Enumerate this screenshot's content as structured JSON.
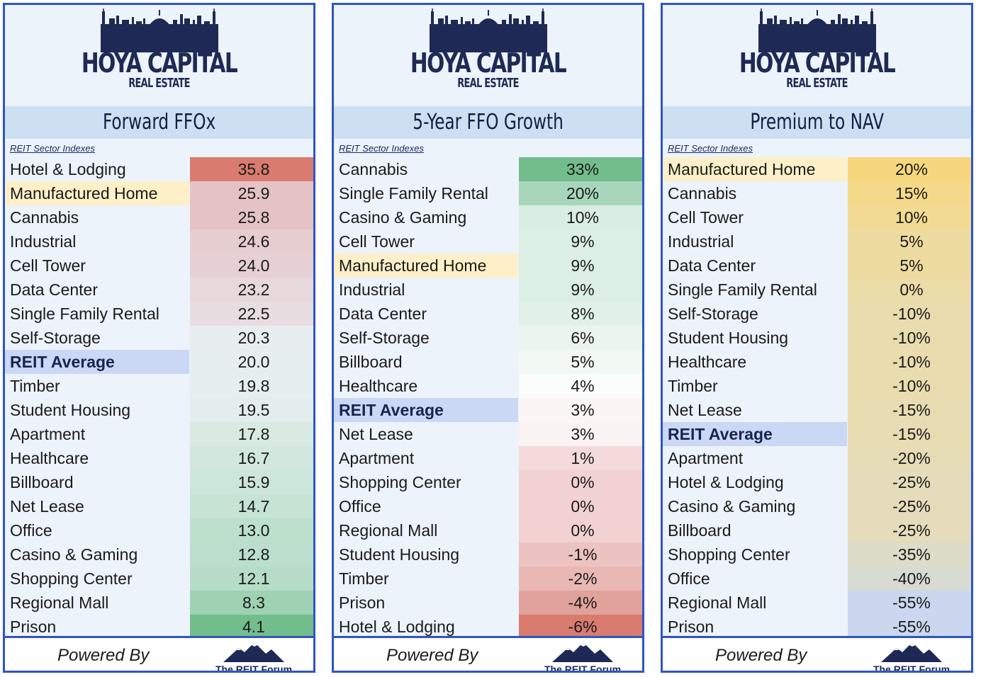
{
  "brand": {
    "name": "HOYA CAPITAL",
    "sub": "REAL ESTATE"
  },
  "footer": {
    "powered_by": "Powered By",
    "forum_name": "The REIT Forum"
  },
  "index_label": "REIT Sector Indexes",
  "colors": {
    "border": "#2f55c4",
    "highlight_row": "#fdf0c8",
    "average_row": "#cad8f5",
    "title_bar": "#cde0f1"
  },
  "panels": [
    {
      "title": "Forward FFOx",
      "rows": [
        {
          "name": "Hotel & Lodging",
          "value": "35.8",
          "color": "#d97b6f"
        },
        {
          "name": "Manufactured Home",
          "value": "25.9",
          "color": "#e5c3c5",
          "highlight": true
        },
        {
          "name": "Cannabis",
          "value": "25.8",
          "color": "#e5c3c5"
        },
        {
          "name": "Industrial",
          "value": "24.6",
          "color": "#e6cdd0"
        },
        {
          "name": "Cell Tower",
          "value": "24.0",
          "color": "#e6d0d3"
        },
        {
          "name": "Data Center",
          "value": "23.2",
          "color": "#e7d8db"
        },
        {
          "name": "Single Family Rental",
          "value": "22.5",
          "color": "#e8dde1"
        },
        {
          "name": "Self-Storage",
          "value": "20.3",
          "color": "#e8edf0"
        },
        {
          "name": "REIT Average",
          "value": "20.0",
          "color": "#e6eef0",
          "average": true
        },
        {
          "name": "Timber",
          "value": "19.8",
          "color": "#e5eef0"
        },
        {
          "name": "Student Housing",
          "value": "19.5",
          "color": "#e3eeec"
        },
        {
          "name": "Apartment",
          "value": "17.8",
          "color": "#d8eae2"
        },
        {
          "name": "Healthcare",
          "value": "16.7",
          "color": "#d2e8de"
        },
        {
          "name": "Billboard",
          "value": "15.9",
          "color": "#cde6da"
        },
        {
          "name": "Net Lease",
          "value": "14.7",
          "color": "#c6e3d4"
        },
        {
          "name": "Office",
          "value": "13.0",
          "color": "#bde0cd"
        },
        {
          "name": "Casino & Gaming",
          "value": "12.8",
          "color": "#bbdfcc"
        },
        {
          "name": "Shopping Center",
          "value": "12.1",
          "color": "#b6ddc8"
        },
        {
          "name": "Regional Mall",
          "value": "8.3",
          "color": "#9ed2b2"
        },
        {
          "name": "Prison",
          "value": "4.1",
          "color": "#72bd8c"
        }
      ]
    },
    {
      "title": "5-Year FFO Growth",
      "rows": [
        {
          "name": "Cannabis",
          "value": "33%",
          "color": "#73bd8d"
        },
        {
          "name": "Single Family Rental",
          "value": "20%",
          "color": "#a8d6bb"
        },
        {
          "name": "Casino & Gaming",
          "value": "10%",
          "color": "#d9ede2"
        },
        {
          "name": "Cell Tower",
          "value": "9%",
          "color": "#dcefe5"
        },
        {
          "name": "Manufactured Home",
          "value": "9%",
          "color": "#dcefe5",
          "highlight": true
        },
        {
          "name": "Industrial",
          "value": "9%",
          "color": "#dcefe5"
        },
        {
          "name": "Data Center",
          "value": "8%",
          "color": "#e1f1e8"
        },
        {
          "name": "Self-Storage",
          "value": "6%",
          "color": "#ebf5ef"
        },
        {
          "name": "Billboard",
          "value": "5%",
          "color": "#f2f8f4"
        },
        {
          "name": "Healthcare",
          "value": "4%",
          "color": "#fbfdfc"
        },
        {
          "name": "REIT Average",
          "value": "3%",
          "color": "#fbf5f5",
          "average": true
        },
        {
          "name": "Net Lease",
          "value": "3%",
          "color": "#fbf3f3"
        },
        {
          "name": "Apartment",
          "value": "1%",
          "color": "#f4dada"
        },
        {
          "name": "Shopping Center",
          "value": "0%",
          "color": "#f1d1d1"
        },
        {
          "name": "Office",
          "value": "0%",
          "color": "#f1d1d1"
        },
        {
          "name": "Regional Mall",
          "value": "0%",
          "color": "#f1d1d1"
        },
        {
          "name": "Student Housing",
          "value": "-1%",
          "color": "#ecc3c1"
        },
        {
          "name": "Timber",
          "value": "-2%",
          "color": "#e9b8b5"
        },
        {
          "name": "Prison",
          "value": "-4%",
          "color": "#e1a29b"
        },
        {
          "name": "Hotel & Lodging",
          "value": "-6%",
          "color": "#d97b6f"
        }
      ]
    },
    {
      "title": "Premium to NAV",
      "rows": [
        {
          "name": "Manufactured Home",
          "value": "20%",
          "color": "#f7d77d",
          "highlight": true
        },
        {
          "name": "Cannabis",
          "value": "15%",
          "color": "#f5d98a"
        },
        {
          "name": "Cell Tower",
          "value": "10%",
          "color": "#f2da94"
        },
        {
          "name": "Industrial",
          "value": "5%",
          "color": "#eedb9f"
        },
        {
          "name": "Data Center",
          "value": "5%",
          "color": "#eedb9f"
        },
        {
          "name": "Single Family Rental",
          "value": "0%",
          "color": "#ebdca8"
        },
        {
          "name": "Self-Storage",
          "value": "-10%",
          "color": "#e9dcae"
        },
        {
          "name": "Student Housing",
          "value": "-10%",
          "color": "#e9dcae"
        },
        {
          "name": "Healthcare",
          "value": "-10%",
          "color": "#e9dcae"
        },
        {
          "name": "Timber",
          "value": "-10%",
          "color": "#e9dcae"
        },
        {
          "name": "Net Lease",
          "value": "-15%",
          "color": "#e8dcb2"
        },
        {
          "name": "REIT Average",
          "value": "-15%",
          "color": "#e8dcb2",
          "average": true
        },
        {
          "name": "Apartment",
          "value": "-20%",
          "color": "#e6dcb6"
        },
        {
          "name": "Hotel & Lodging",
          "value": "-25%",
          "color": "#e4dcba"
        },
        {
          "name": "Casino & Gaming",
          "value": "-25%",
          "color": "#e4dcba"
        },
        {
          "name": "Billboard",
          "value": "-25%",
          "color": "#e4dcba"
        },
        {
          "name": "Shopping Center",
          "value": "-35%",
          "color": "#dcdcc9"
        },
        {
          "name": "Office",
          "value": "-40%",
          "color": "#d7dbd2"
        },
        {
          "name": "Regional Mall",
          "value": "-55%",
          "color": "#cad7ee"
        },
        {
          "name": "Prison",
          "value": "-55%",
          "color": "#cad7ee"
        }
      ]
    }
  ]
}
